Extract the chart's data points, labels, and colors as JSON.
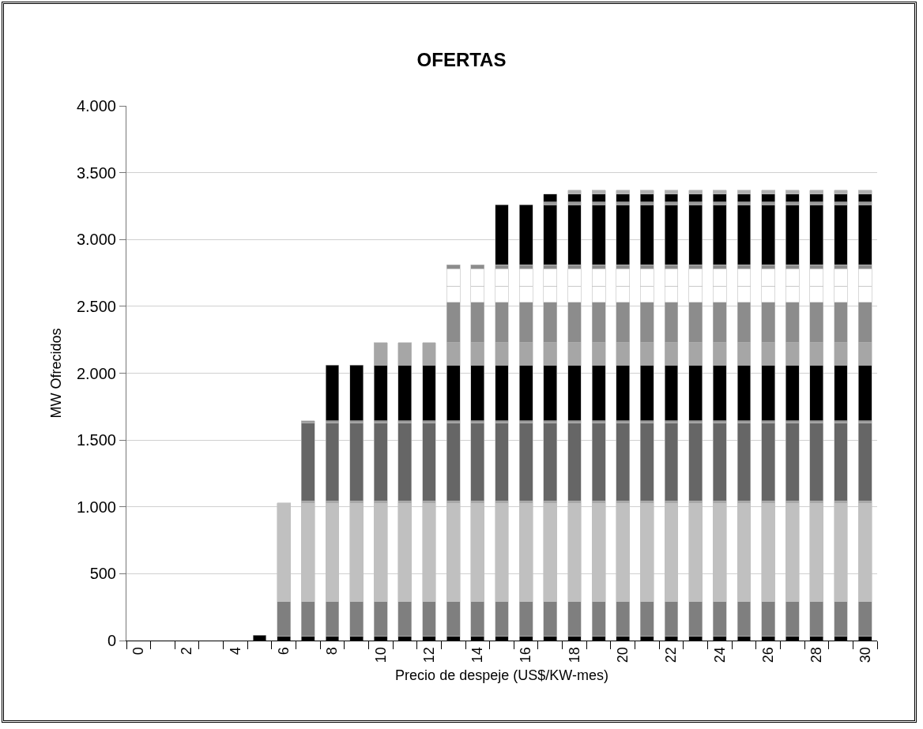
{
  "chart_data": {
    "type": "bar",
    "title": "OFERTAS",
    "xlabel": "Precio de despeje (US$/KW-mes)",
    "ylabel": "MW Ofrecidos",
    "categories": [
      "0",
      null,
      "2",
      null,
      "4",
      null,
      "6",
      null,
      "8",
      null,
      "10",
      null,
      "12",
      null,
      "14",
      null,
      "16",
      null,
      "18",
      null,
      "20",
      null,
      "22",
      null,
      "24",
      null,
      "26",
      null,
      "28",
      null,
      "30"
    ],
    "stacked": true,
    "grid": "y",
    "ylim": [
      0,
      4000
    ],
    "yticks": [
      {
        "value": 0,
        "label": "0"
      },
      {
        "value": 500,
        "label": "500"
      },
      {
        "value": 1000,
        "label": "1.000"
      },
      {
        "value": 1500,
        "label": "1.500"
      },
      {
        "value": 2000,
        "label": "2.000"
      },
      {
        "value": 2500,
        "label": "2.500"
      },
      {
        "value": 3000,
        "label": "3.000"
      },
      {
        "value": 3500,
        "label": "3.500"
      },
      {
        "value": 4000,
        "label": "4.000"
      }
    ],
    "series": [
      {
        "color": "#000000",
        "values": [
          null,
          null,
          null,
          null,
          null,
          40,
          30,
          30,
          30,
          30,
          30,
          30,
          30,
          30,
          30,
          30,
          30,
          30,
          30,
          30,
          30,
          30,
          30,
          30,
          30,
          30,
          30,
          30,
          30,
          30,
          30
        ]
      },
      {
        "color": "#7f7f7f",
        "values": [
          null,
          null,
          null,
          null,
          null,
          null,
          260,
          260,
          260,
          260,
          260,
          260,
          260,
          260,
          260,
          260,
          260,
          260,
          260,
          260,
          260,
          260,
          260,
          260,
          260,
          260,
          260,
          260,
          260,
          260,
          260
        ]
      },
      {
        "color": "#c0c0c0",
        "values": [
          null,
          null,
          null,
          null,
          null,
          null,
          740,
          740,
          740,
          740,
          740,
          740,
          740,
          740,
          740,
          740,
          740,
          740,
          740,
          740,
          740,
          740,
          740,
          740,
          740,
          740,
          740,
          740,
          740,
          740,
          740
        ]
      },
      {
        "color": "#9a9a9a",
        "values": [
          null,
          null,
          null,
          null,
          null,
          null,
          null,
          15,
          15,
          15,
          15,
          15,
          15,
          15,
          15,
          15,
          15,
          15,
          15,
          15,
          15,
          15,
          15,
          15,
          15,
          15,
          15,
          15,
          15,
          15,
          15
        ]
      },
      {
        "color": "#666666",
        "values": [
          null,
          null,
          null,
          null,
          null,
          null,
          null,
          585,
          585,
          585,
          585,
          585,
          585,
          585,
          585,
          585,
          585,
          585,
          585,
          585,
          585,
          585,
          585,
          585,
          585,
          585,
          585,
          585,
          585,
          585,
          585
        ]
      },
      {
        "color": "#9a9a9a",
        "values": [
          null,
          null,
          null,
          null,
          null,
          null,
          null,
          15,
          15,
          15,
          15,
          15,
          15,
          15,
          15,
          15,
          15,
          15,
          15,
          15,
          15,
          15,
          15,
          15,
          15,
          15,
          15,
          15,
          15,
          15,
          15
        ]
      },
      {
        "color": "#000000",
        "values": [
          null,
          null,
          null,
          null,
          null,
          null,
          null,
          null,
          415,
          415,
          415,
          415,
          415,
          415,
          415,
          415,
          415,
          415,
          415,
          415,
          415,
          415,
          415,
          415,
          415,
          415,
          415,
          415,
          415,
          415,
          415
        ]
      },
      {
        "color": "#a6a6a6",
        "values": [
          null,
          null,
          null,
          null,
          null,
          null,
          null,
          null,
          null,
          null,
          170,
          170,
          170,
          170,
          170,
          170,
          170,
          170,
          170,
          170,
          170,
          170,
          170,
          170,
          170,
          170,
          170,
          170,
          170,
          170,
          170
        ]
      },
      {
        "color": "#8c8c8c",
        "values": [
          null,
          null,
          null,
          null,
          null,
          null,
          null,
          null,
          null,
          null,
          null,
          null,
          null,
          300,
          300,
          300,
          300,
          300,
          300,
          300,
          300,
          300,
          300,
          300,
          300,
          300,
          300,
          300,
          300,
          300,
          300
        ]
      },
      {
        "color": "#ffffff",
        "values": [
          null,
          null,
          null,
          null,
          null,
          null,
          null,
          null,
          null,
          null,
          null,
          null,
          null,
          120,
          120,
          120,
          120,
          120,
          120,
          120,
          120,
          120,
          120,
          120,
          120,
          120,
          120,
          120,
          120,
          120,
          120
        ]
      },
      {
        "color": "#ffffff",
        "values": [
          null,
          null,
          null,
          null,
          null,
          null,
          null,
          null,
          null,
          null,
          null,
          null,
          null,
          130,
          130,
          130,
          130,
          130,
          130,
          130,
          130,
          130,
          130,
          130,
          130,
          130,
          130,
          130,
          130,
          130,
          130
        ]
      },
      {
        "color": "#8c8c8c",
        "values": [
          null,
          null,
          null,
          null,
          null,
          null,
          null,
          null,
          null,
          null,
          null,
          null,
          null,
          30,
          30,
          30,
          30,
          30,
          30,
          30,
          30,
          30,
          30,
          30,
          30,
          30,
          30,
          30,
          30,
          30,
          30
        ]
      },
      {
        "color": "#000000",
        "values": [
          null,
          null,
          null,
          null,
          null,
          null,
          null,
          null,
          null,
          null,
          null,
          null,
          null,
          null,
          null,
          450,
          450,
          450,
          450,
          450,
          450,
          450,
          450,
          450,
          450,
          450,
          450,
          450,
          450,
          450,
          450
        ]
      },
      {
        "color": "#9a9a9a",
        "values": [
          null,
          null,
          null,
          null,
          null,
          null,
          null,
          null,
          null,
          null,
          null,
          null,
          null,
          null,
          null,
          null,
          null,
          20,
          20,
          20,
          20,
          20,
          20,
          20,
          20,
          20,
          20,
          20,
          20,
          20,
          20
        ]
      },
      {
        "color": "#000000",
        "values": [
          null,
          null,
          null,
          null,
          null,
          null,
          null,
          null,
          null,
          null,
          null,
          null,
          null,
          null,
          null,
          null,
          null,
          60,
          60,
          60,
          60,
          60,
          60,
          60,
          60,
          60,
          60,
          60,
          60,
          60,
          60
        ]
      },
      {
        "color": "#b0b0b0",
        "values": [
          null,
          null,
          null,
          null,
          null,
          null,
          null,
          null,
          null,
          null,
          null,
          null,
          null,
          null,
          null,
          null,
          null,
          null,
          30,
          30,
          30,
          30,
          30,
          30,
          30,
          30,
          30,
          30,
          30,
          30,
          30
        ]
      }
    ]
  }
}
